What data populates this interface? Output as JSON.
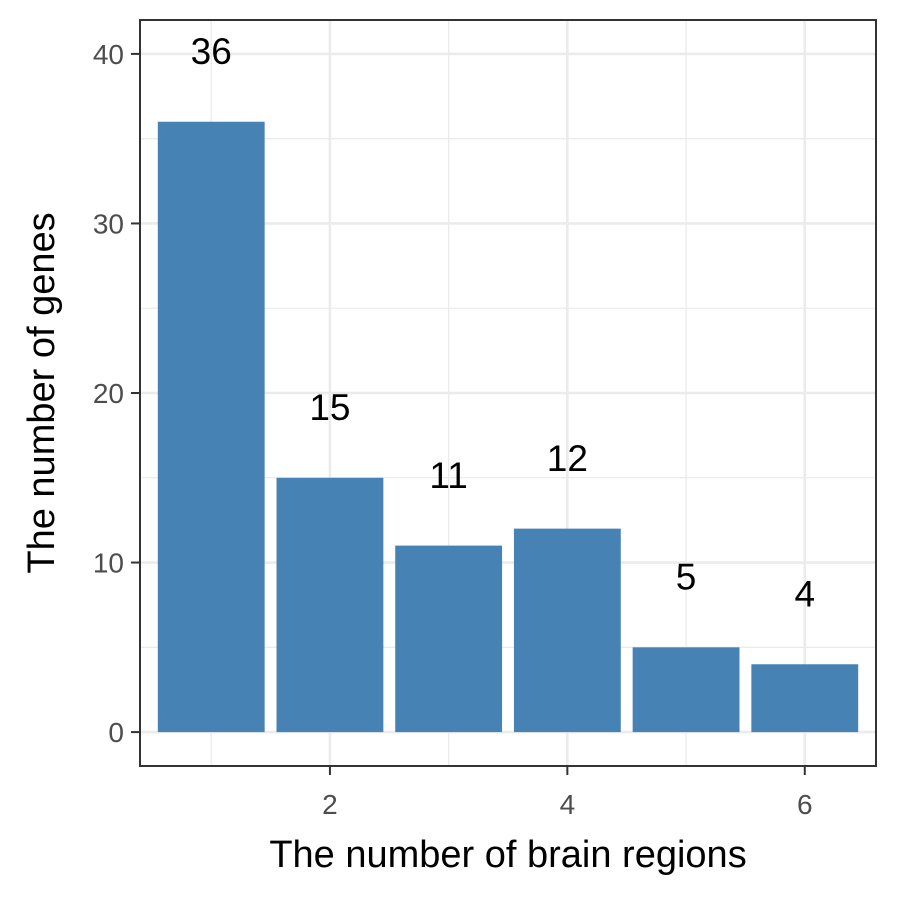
{
  "chart_data": {
    "type": "bar",
    "x": [
      1,
      2,
      3,
      4,
      5,
      6
    ],
    "values": [
      36,
      15,
      11,
      12,
      5,
      4
    ],
    "data_labels": [
      "36",
      "15",
      "11",
      "12",
      "5",
      "4"
    ],
    "xlabel": "The number of brain regions",
    "ylabel": "The number of genes",
    "x_ticks": [
      2,
      4,
      6
    ],
    "x_tick_labels": [
      "2",
      "4",
      "6"
    ],
    "y_ticks": [
      0,
      10,
      20,
      30,
      40
    ],
    "y_tick_labels": [
      "0",
      "10",
      "20",
      "30",
      "40"
    ],
    "xlim": [
      0.4,
      6.6
    ],
    "ylim": [
      -2,
      42
    ],
    "grid": true,
    "bar_color": "#4682B4",
    "background": "#FFFFFF",
    "grid_color": "#EBEBEB"
  }
}
